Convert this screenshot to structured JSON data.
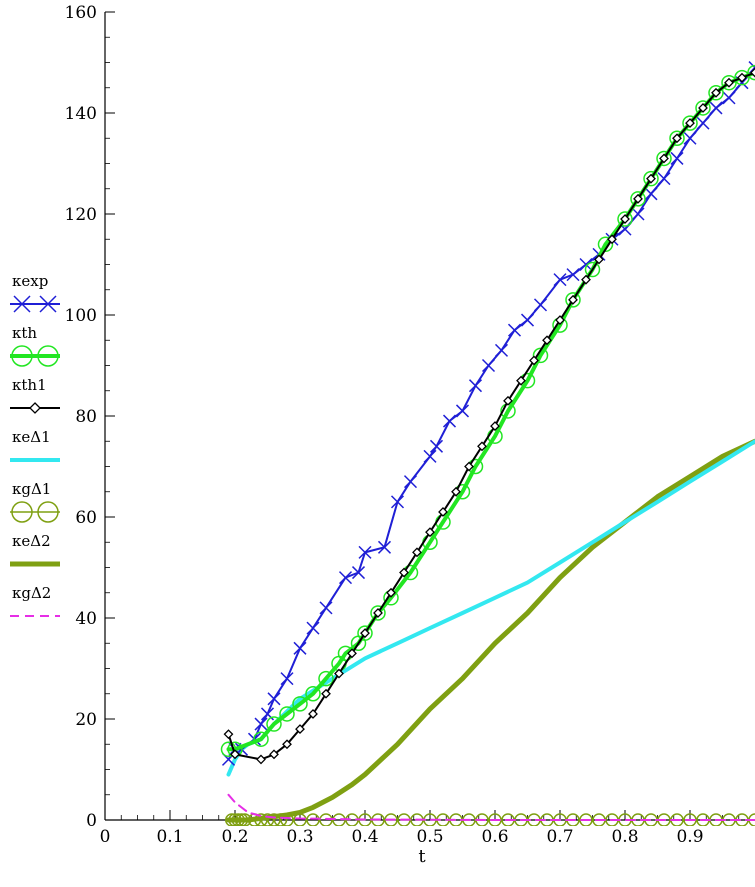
{
  "chart_data": {
    "type": "line",
    "title": "",
    "xlabel": "t",
    "ylabel": "",
    "xlim": [
      0,
      1.0
    ],
    "ylim": [
      0,
      160
    ],
    "x_ticks": [
      0,
      0.1,
      0.2,
      0.3,
      0.4,
      0.5,
      0.6,
      0.7,
      0.8,
      0.9
    ],
    "x_tick_labels": [
      "0",
      "0.1",
      "0.2",
      "0.3",
      "0.4",
      "0.5",
      "0.6",
      "0.7",
      "0.8",
      "0.9"
    ],
    "y_ticks": [
      0,
      20,
      40,
      60,
      80,
      100,
      120,
      140,
      160
    ],
    "y_tick_labels": [
      "0",
      "20",
      "40",
      "60",
      "80",
      "100",
      "120",
      "140",
      "160"
    ],
    "grid": false,
    "legend_position": "left",
    "series": [
      {
        "name": "κexp",
        "color": "#1f1fd6",
        "style": "solid",
        "marker": "x",
        "x": [
          0.19,
          0.2,
          0.21,
          0.23,
          0.24,
          0.25,
          0.26,
          0.28,
          0.3,
          0.32,
          0.34,
          0.37,
          0.39,
          0.4,
          0.43,
          0.45,
          0.47,
          0.5,
          0.51,
          0.53,
          0.55,
          0.57,
          0.59,
          0.61,
          0.63,
          0.65,
          0.67,
          0.7,
          0.72,
          0.74,
          0.76,
          0.78,
          0.8,
          0.82,
          0.84,
          0.86,
          0.88,
          0.9,
          0.92,
          0.94,
          0.96,
          0.98,
          1.0
        ],
        "y": [
          12,
          14,
          14,
          16,
          19,
          21,
          24,
          28,
          34,
          38,
          42,
          48,
          49,
          53,
          54,
          63,
          67,
          72,
          74,
          79,
          81,
          86,
          90,
          93,
          97,
          99,
          102,
          107,
          108,
          110,
          112,
          115,
          117,
          120,
          124,
          127,
          131,
          135,
          138,
          141,
          143,
          146,
          149
        ]
      },
      {
        "name": "κth",
        "color": "#22e622",
        "style": "solid",
        "marker": "o",
        "x": [
          0.19,
          0.2,
          0.24,
          0.26,
          0.28,
          0.3,
          0.32,
          0.34,
          0.36,
          0.37,
          0.39,
          0.4,
          0.42,
          0.44,
          0.47,
          0.5,
          0.52,
          0.55,
          0.57,
          0.6,
          0.62,
          0.65,
          0.67,
          0.7,
          0.72,
          0.75,
          0.77,
          0.8,
          0.82,
          0.84,
          0.86,
          0.88,
          0.9,
          0.92,
          0.94,
          0.96,
          0.98,
          1.0
        ],
        "y": [
          14,
          14,
          16,
          19,
          21,
          23,
          25,
          28,
          31,
          33,
          35,
          37,
          41,
          44,
          49,
          55,
          59,
          65,
          70,
          76,
          81,
          87,
          92,
          98,
          103,
          109,
          114,
          119,
          123,
          127,
          131,
          135,
          138,
          141,
          144,
          146,
          147,
          148
        ]
      },
      {
        "name": "κth1",
        "color": "#000000",
        "style": "solid",
        "marker": "diamond",
        "x": [
          0.19,
          0.2,
          0.24,
          0.26,
          0.28,
          0.3,
          0.32,
          0.34,
          0.36,
          0.38,
          0.4,
          0.42,
          0.44,
          0.46,
          0.48,
          0.5,
          0.52,
          0.54,
          0.56,
          0.58,
          0.6,
          0.62,
          0.64,
          0.66,
          0.68,
          0.7,
          0.72,
          0.74,
          0.76,
          0.78,
          0.8,
          0.82,
          0.84,
          0.86,
          0.88,
          0.9,
          0.92,
          0.94,
          0.96,
          0.98,
          1.0
        ],
        "y": [
          17,
          13,
          12,
          13,
          15,
          18,
          21,
          25,
          29,
          33,
          37,
          41,
          45,
          49,
          53,
          57,
          61,
          65,
          70,
          74,
          78,
          83,
          87,
          91,
          95,
          99,
          103,
          107,
          111,
          115,
          119,
          123,
          127,
          131,
          135,
          138,
          141,
          144,
          146,
          147,
          148
        ]
      },
      {
        "name": "κeΔ1",
        "color": "#33e8f0",
        "style": "solid",
        "marker": "none",
        "x": [
          0.19,
          0.2,
          0.21,
          0.22,
          0.24,
          0.26,
          0.3,
          0.35,
          0.4,
          0.45,
          0.5,
          0.55,
          0.6,
          0.65,
          0.7,
          0.75,
          0.8,
          0.85,
          0.9,
          0.95,
          1.0
        ],
        "y": [
          9,
          12,
          14,
          15,
          16,
          19,
          24,
          28,
          32,
          35,
          38,
          41,
          44,
          47,
          51,
          55,
          59,
          63,
          67,
          71,
          75
        ]
      },
      {
        "name": "κgΔ1",
        "color": "#7fa012",
        "style": "none",
        "marker": "o",
        "x": [
          0.195,
          0.2,
          0.205,
          0.21,
          0.215,
          0.23,
          0.24,
          0.25,
          0.26,
          0.27,
          0.28,
          0.3,
          0.32,
          0.34,
          0.36,
          0.38,
          0.4,
          0.42,
          0.44,
          0.46,
          0.48,
          0.5,
          0.52,
          0.54,
          0.56,
          0.58,
          0.6,
          0.62,
          0.64,
          0.66,
          0.68,
          0.7,
          0.72,
          0.74,
          0.76,
          0.78,
          0.8,
          0.82,
          0.84,
          0.86,
          0.88,
          0.9,
          0.92,
          0.94,
          0.96,
          0.98,
          1.0
        ],
        "y": [
          0,
          0,
          0,
          0,
          0,
          0,
          0,
          0,
          0,
          0,
          0,
          0,
          0,
          0,
          0,
          0,
          0,
          0,
          0,
          0,
          0,
          0,
          0,
          0,
          0,
          0,
          0,
          0,
          0,
          0,
          0,
          0,
          0,
          0,
          0,
          0,
          0,
          0,
          0,
          0,
          0,
          0,
          0,
          0,
          0,
          0,
          0
        ]
      },
      {
        "name": "κeΔ2",
        "color": "#7fa012",
        "style": "solid",
        "marker": "none",
        "x": [
          0.19,
          0.22,
          0.25,
          0.28,
          0.3,
          0.32,
          0.35,
          0.38,
          0.4,
          0.45,
          0.5,
          0.55,
          0.6,
          0.65,
          0.7,
          0.75,
          0.8,
          0.85,
          0.9,
          0.95,
          1.0
        ],
        "y": [
          0,
          0,
          0.5,
          1,
          1.5,
          2.5,
          4.5,
          7,
          9,
          15,
          22,
          28,
          35,
          41,
          48,
          54,
          59,
          64,
          68,
          72,
          75
        ]
      },
      {
        "name": "κgΔ2",
        "color": "#e62ee6",
        "style": "dashed",
        "marker": "none",
        "x": [
          0.19,
          0.2,
          0.21,
          0.22,
          0.24,
          0.26,
          0.3,
          0.35,
          0.4,
          0.5,
          0.6,
          0.7,
          0.8,
          0.9,
          1.0
        ],
        "y": [
          5,
          3.5,
          2.5,
          1.5,
          0.8,
          0.5,
          0.3,
          0.2,
          0.1,
          0.05,
          0,
          0,
          0,
          0,
          0
        ]
      }
    ]
  }
}
